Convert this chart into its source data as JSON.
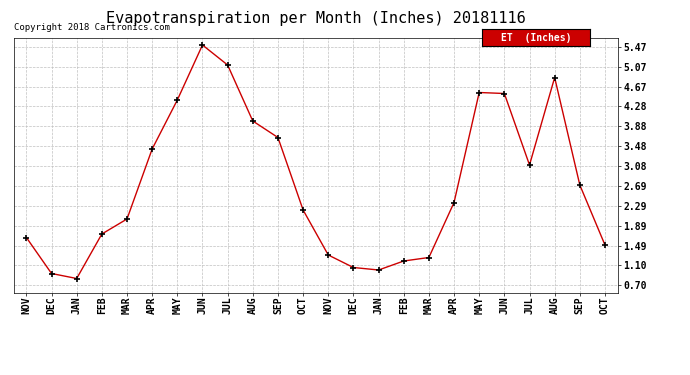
{
  "title": "Evapotranspiration per Month (Inches) 20181116",
  "copyright": "Copyright 2018 Cartronics.com",
  "legend_label": "ET  (Inches)",
  "x_labels": [
    "NOV",
    "DEC",
    "JAN",
    "FEB",
    "MAR",
    "APR",
    "MAY",
    "JUN",
    "JUL",
    "AUG",
    "SEP",
    "OCT",
    "NOV",
    "DEC",
    "JAN",
    "FEB",
    "MAR",
    "APR",
    "MAY",
    "JUN",
    "JUL",
    "AUG",
    "SEP",
    "OCT"
  ],
  "et_values": [
    1.65,
    0.93,
    0.83,
    1.72,
    2.02,
    3.42,
    4.4,
    5.5,
    5.1,
    3.98,
    3.65,
    2.2,
    1.3,
    1.05,
    1.0,
    1.18,
    1.25,
    2.35,
    4.55,
    4.53,
    3.1,
    4.85,
    2.7,
    1.5
  ],
  "yticks": [
    0.7,
    1.1,
    1.49,
    1.89,
    2.29,
    2.69,
    3.08,
    3.48,
    3.88,
    4.28,
    4.67,
    5.07,
    5.47
  ],
  "line_color": "#cc0000",
  "marker": "+",
  "bg_color": "#ffffff",
  "grid_color": "#c0c0c0",
  "legend_bg": "#cc0000",
  "legend_text_color": "#ffffff",
  "title_fontsize": 11,
  "copyright_fontsize": 6.5,
  "tick_fontsize": 7,
  "legend_fontsize": 7,
  "ylim": [
    0.55,
    5.65
  ]
}
